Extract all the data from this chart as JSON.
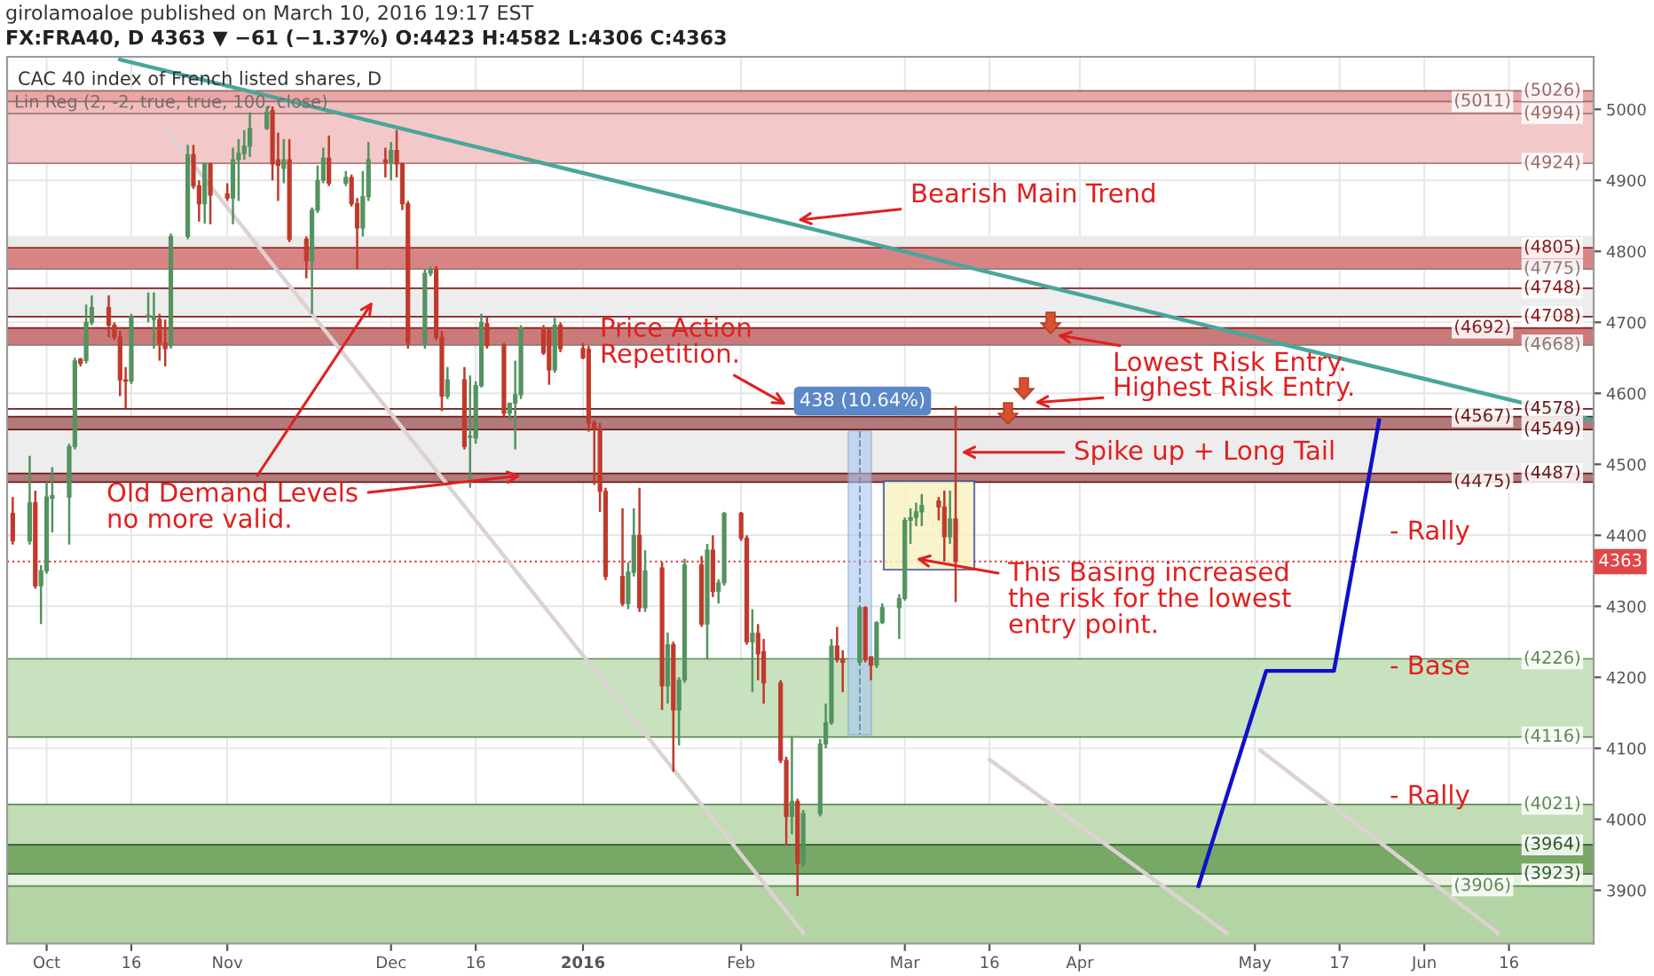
{
  "chart_data": {
    "type": "candlestick",
    "subtitle": "girolamoaloe published on March 10, 2016 19:17 EST",
    "title": "FX:FRA40, D 4363 ▼ −61 (−1.37%) O:4423 H:4582 L:4306 C:4363",
    "x": [
      "2015-09-25",
      "2015-09-28",
      "2015-09-29",
      "2015-09-30",
      "2015-10-01",
      "2015-10-02",
      "2015-10-05",
      "2015-10-06",
      "2015-10-07",
      "2015-10-08",
      "2015-10-09",
      "2015-10-12",
      "2015-10-13",
      "2015-10-14",
      "2015-10-15",
      "2015-10-16",
      "2015-10-19",
      "2015-10-20",
      "2015-10-21",
      "2015-10-22",
      "2015-10-23",
      "2015-10-26",
      "2015-10-27",
      "2015-10-28",
      "2015-10-29",
      "2015-10-30",
      "2015-11-02",
      "2015-11-03",
      "2015-11-04",
      "2015-11-05",
      "2015-11-06",
      "2015-11-09",
      "2015-11-10",
      "2015-11-11",
      "2015-11-12",
      "2015-11-13",
      "2015-11-16",
      "2015-11-17",
      "2015-11-18",
      "2015-11-19",
      "2015-11-20",
      "2015-11-23",
      "2015-11-24",
      "2015-11-25",
      "2015-11-26",
      "2015-11-27",
      "2015-11-30",
      "2015-12-01",
      "2015-12-02",
      "2015-12-03",
      "2015-12-04",
      "2015-12-07",
      "2015-12-08",
      "2015-12-09",
      "2015-12-10",
      "2015-12-11",
      "2015-12-14",
      "2015-12-15",
      "2015-12-16",
      "2015-12-17",
      "2015-12-18",
      "2015-12-21",
      "2015-12-22",
      "2015-12-23",
      "2015-12-24",
      "2015-12-28",
      "2015-12-29",
      "2015-12-30",
      "2015-12-31",
      "2016-01-04",
      "2016-01-05",
      "2016-01-06",
      "2016-01-07",
      "2016-01-08",
      "2016-01-11",
      "2016-01-12",
      "2016-01-13",
      "2016-01-14",
      "2016-01-15",
      "2016-01-18",
      "2016-01-19",
      "2016-01-20",
      "2016-01-21",
      "2016-01-22",
      "2016-01-25",
      "2016-01-26",
      "2016-01-27",
      "2016-01-28",
      "2016-01-29",
      "2016-02-01",
      "2016-02-02",
      "2016-02-03",
      "2016-02-04",
      "2016-02-05",
      "2016-02-08",
      "2016-02-09",
      "2016-02-10",
      "2016-02-11",
      "2016-02-12",
      "2016-02-15",
      "2016-02-16",
      "2016-02-17",
      "2016-02-18",
      "2016-02-19",
      "2016-02-22",
      "2016-02-23",
      "2016-02-24",
      "2016-02-25",
      "2016-02-26",
      "2016-02-29",
      "2016-03-01",
      "2016-03-02",
      "2016-03-03",
      "2016-03-04",
      "2016-03-07",
      "2016-03-08",
      "2016-03-09",
      "2016-03-10"
    ],
    "ohlc": [
      [
        4431,
        4454,
        4387,
        4392
      ],
      [
        4392,
        4512,
        4387,
        4446
      ],
      [
        4446,
        4463,
        4325,
        4329
      ],
      [
        4329,
        4358,
        4275,
        4350
      ],
      [
        4350,
        4475,
        4346,
        4454
      ],
      [
        4452,
        4496,
        4404,
        4456
      ],
      [
        4454,
        4529,
        4387,
        4525
      ],
      [
        4525,
        4650,
        4521,
        4646
      ],
      [
        4648,
        4650,
        4638,
        4642
      ],
      [
        4646,
        4725,
        4642,
        4700
      ],
      [
        4700,
        4738,
        4696,
        4721
      ],
      [
        4721,
        4738,
        4679,
        4696
      ],
      [
        4696,
        4700,
        4675,
        4679
      ],
      [
        4679,
        4688,
        4596,
        4619
      ],
      [
        4619,
        4637,
        4579,
        4617
      ],
      [
        4617,
        4712,
        4613,
        4708
      ],
      [
        4708,
        4742,
        4700,
        4710
      ],
      [
        4704,
        4742,
        4663,
        4708
      ],
      [
        4704,
        4712,
        4646,
        4671
      ],
      [
        4671,
        4704,
        4638,
        4663
      ],
      [
        4667,
        4825,
        4663,
        4821
      ],
      [
        4821,
        4950,
        4817,
        4936
      ],
      [
        4936,
        4950,
        4888,
        4892
      ],
      [
        4892,
        4900,
        4842,
        4867
      ],
      [
        4867,
        4925,
        4839,
        4923
      ],
      [
        4923,
        4925,
        4838,
        4879
      ],
      [
        4881,
        4896,
        4871,
        4875
      ],
      [
        4875,
        4946,
        4838,
        4929
      ],
      [
        4929,
        4958,
        4871,
        4938
      ],
      [
        4938,
        4971,
        4929,
        4948
      ],
      [
        4948,
        4996,
        4933,
        4973
      ],
      [
        4973,
        5004,
        4971,
        4996
      ],
      [
        4998,
        5004,
        4900,
        4923
      ],
      [
        4929,
        4967,
        4871,
        4921
      ],
      [
        4917,
        4958,
        4896,
        4929
      ],
      [
        4929,
        4958,
        4813,
        4817
      ],
      [
        4817,
        4821,
        4762,
        4787
      ],
      [
        4787,
        4862,
        4712,
        4858
      ],
      [
        4858,
        4921,
        4854,
        4900
      ],
      [
        4900,
        4946,
        4896,
        4931
      ],
      [
        4931,
        4963,
        4892,
        4896
      ],
      [
        4896,
        4913,
        4892,
        4904
      ],
      [
        4904,
        4908,
        4863,
        4867
      ],
      [
        4867,
        4875,
        4775,
        4833
      ],
      [
        4833,
        4913,
        4821,
        4877
      ],
      [
        4877,
        4954,
        4871,
        4929
      ],
      [
        4929,
        4946,
        4904,
        4925
      ],
      [
        4925,
        4954,
        4900,
        4942
      ],
      [
        4942,
        4971,
        4904,
        4923
      ],
      [
        4923,
        4925,
        4858,
        4867
      ],
      [
        4867,
        4871,
        4663,
        4671
      ],
      [
        4671,
        4775,
        4663,
        4769
      ],
      [
        4769,
        4779,
        4765,
        4775
      ],
      [
        4775,
        4779,
        4675,
        4679
      ],
      [
        4679,
        4688,
        4575,
        4596
      ],
      [
        4596,
        4637,
        4592,
        4619
      ],
      [
        4619,
        4637,
        4521,
        4525
      ],
      [
        4538,
        4625,
        4467,
        4540
      ],
      [
        4537,
        4617,
        4529,
        4611
      ],
      [
        4611,
        4712,
        4608,
        4700
      ],
      [
        4698,
        4708,
        4663,
        4667
      ],
      [
        4668,
        4671,
        4567,
        4572
      ],
      [
        4572,
        4587,
        4562,
        4586
      ],
      [
        4586,
        4646,
        4521,
        4598
      ],
      [
        4598,
        4696,
        4592,
        4692
      ],
      [
        4692,
        4696,
        4654,
        4657
      ],
      [
        4688,
        4692,
        4612,
        4633
      ],
      [
        4633,
        4708,
        4629,
        4696
      ],
      [
        4696,
        4700,
        4658,
        4663
      ],
      [
        4663,
        4671,
        4648,
        4650
      ],
      [
        4662,
        4667,
        4546,
        4558
      ],
      [
        4558,
        4562,
        4471,
        4550
      ],
      [
        4550,
        4558,
        4433,
        4462
      ],
      [
        4462,
        4467,
        4337,
        4342
      ],
      [
        4342,
        4438,
        4300,
        4304
      ],
      [
        4304,
        4362,
        4296,
        4348
      ],
      [
        4348,
        4438,
        4342,
        4400
      ],
      [
        4400,
        4467,
        4292,
        4298
      ],
      [
        4298,
        4379,
        4292,
        4350
      ],
      [
        4354,
        4362,
        4154,
        4188
      ],
      [
        4188,
        4263,
        4163,
        4246
      ],
      [
        4246,
        4250,
        4067,
        4154
      ],
      [
        4154,
        4200,
        4104,
        4196
      ],
      [
        4196,
        4367,
        4192,
        4358
      ],
      [
        4358,
        4371,
        4271,
        4275
      ],
      [
        4275,
        4388,
        4225,
        4379
      ],
      [
        4379,
        4400,
        4313,
        4321
      ],
      [
        4321,
        4338,
        4304,
        4333
      ],
      [
        4333,
        4433,
        4329,
        4431
      ],
      [
        4431,
        4433,
        4392,
        4396
      ],
      [
        4396,
        4400,
        4246,
        4250
      ],
      [
        4250,
        4296,
        4179,
        4262
      ],
      [
        4262,
        4275,
        4196,
        4233
      ],
      [
        4236,
        4254,
        4163,
        4192
      ],
      [
        4192,
        4196,
        4079,
        4083
      ],
      [
        4083,
        4088,
        3963,
        4004
      ],
      [
        4004,
        4117,
        3979,
        4025
      ],
      [
        4025,
        4029,
        3892,
        3938
      ],
      [
        3938,
        4013,
        3933,
        4008
      ],
      [
        4008,
        4113,
        4004,
        4106
      ],
      [
        4106,
        4163,
        4100,
        4136
      ],
      [
        4136,
        4254,
        4133,
        4244
      ],
      [
        4244,
        4271,
        4221,
        4225
      ],
      [
        4225,
        4238,
        4179,
        4221
      ],
      [
        4221,
        4300,
        4217,
        4298
      ],
      [
        4298,
        4300,
        4221,
        4225
      ],
      [
        4229,
        4229,
        4196,
        4217
      ],
      [
        4217,
        4279,
        4213,
        4277
      ],
      [
        4277,
        4304,
        4275,
        4298
      ],
      [
        4298,
        4317,
        4254,
        4311
      ],
      [
        4311,
        4425,
        4308,
        4421
      ],
      [
        4421,
        4438,
        4388,
        4425
      ],
      [
        4425,
        4446,
        4413,
        4433
      ],
      [
        4433,
        4458,
        4413,
        4442
      ],
      [
        4448,
        4454,
        4421,
        4440
      ],
      [
        4440,
        4463,
        4363,
        4398
      ],
      [
        4398,
        4463,
        4388,
        4423
      ],
      [
        4423,
        4582,
        4306,
        4363
      ]
    ],
    "colors": [
      "#c0392b",
      "#53935f",
      "#c0392b",
      "#53935f",
      "#53935f",
      "#53935f",
      "#53935f",
      "#53935f",
      "#c0392b",
      "#53935f",
      "#53935f",
      "#c0392b",
      "#c0392b",
      "#c0392b",
      "#c0392b",
      "#53935f",
      "#53935f",
      "#53935f",
      "#c0392b",
      "#c0392b",
      "#53935f",
      "#53935f",
      "#c0392b",
      "#c0392b",
      "#53935f",
      "#c0392b",
      "#c0392b",
      "#53935f",
      "#53935f",
      "#53935f",
      "#53935f",
      "#53935f",
      "#c0392b",
      "#c0392b",
      "#53935f",
      "#c0392b",
      "#c0392b",
      "#53935f",
      "#53935f",
      "#53935f",
      "#c0392b",
      "#53935f",
      "#c0392b",
      "#c0392b",
      "#53935f",
      "#53935f",
      "#c0392b",
      "#53935f",
      "#c0392b",
      "#c0392b",
      "#c0392b",
      "#53935f",
      "#53935f",
      "#c0392b",
      "#c0392b",
      "#53935f",
      "#c0392b",
      "#53935f",
      "#53935f",
      "#53935f",
      "#c0392b",
      "#c0392b",
      "#53935f",
      "#53935f",
      "#53935f",
      "#c0392b",
      "#c0392b",
      "#53935f",
      "#c0392b",
      "#c0392b",
      "#c0392b",
      "#c0392b",
      "#c0392b",
      "#c0392b",
      "#c0392b",
      "#53935f",
      "#53935f",
      "#c0392b",
      "#53935f",
      "#c0392b",
      "#53935f",
      "#c0392b",
      "#53935f",
      "#53935f",
      "#c0392b",
      "#53935f",
      "#c0392b",
      "#53935f",
      "#53935f",
      "#c0392b",
      "#c0392b",
      "#53935f",
      "#c0392b",
      "#c0392b",
      "#c0392b",
      "#c0392b",
      "#53935f",
      "#c0392b",
      "#53935f",
      "#53935f",
      "#53935f",
      "#53935f",
      "#c0392b",
      "#c0392b",
      "#53935f",
      "#c0392b",
      "#c0392b",
      "#53935f",
      "#53935f",
      "#53935f",
      "#53935f",
      "#53935f",
      "#53935f",
      "#53935f",
      "#c0392b",
      "#c0392b",
      "#53935f",
      "#c0392b"
    ],
    "series": [
      {
        "type": "line",
        "x": [
          "2015-10-14",
          "2016-07-01"
        ],
        "values": [
          5070,
          4562
        ],
        "color": "#4ba59b"
      },
      {
        "type": "line",
        "x": [
          "2016-04-22",
          "2016-05-04",
          "2016-05-16",
          "2016-05-24"
        ],
        "values": [
          3906,
          4209,
          4209,
          4562
        ],
        "color": "#1010c8"
      },
      {
        "type": "line",
        "x": [
          "2015-10-22",
          "2016-02-12"
        ],
        "values": [
          4972,
          3840
        ],
        "color": "#dcd2d2"
      },
      {
        "type": "line",
        "x": [
          "2016-03-16",
          "2016-04-27"
        ],
        "values": [
          4084,
          3840
        ],
        "color": "#dcd2d2"
      },
      {
        "type": "line",
        "x": [
          "2016-05-03",
          "2016-06-14"
        ],
        "values": [
          4097,
          3840
        ],
        "color": "#dcd2d2"
      }
    ],
    "xlim": [
      "2015-09-24",
      "2016-07-01"
    ],
    "xticks": [
      {
        "value": "2015-10-01",
        "label": "Oct"
      },
      {
        "value": "2015-10-16",
        "label": "16"
      },
      {
        "value": "2015-11-02",
        "label": "Nov"
      },
      {
        "value": "2015-12-01",
        "label": "Dec"
      },
      {
        "value": "2015-12-16",
        "label": "16"
      },
      {
        "value": "2016-01-04",
        "label": "2016"
      },
      {
        "value": "2016-02-01",
        "label": "Feb"
      },
      {
        "value": "2016-03-01",
        "label": "Mar"
      },
      {
        "value": "2016-03-16",
        "label": "16"
      },
      {
        "value": "2016-04-01",
        "label": "Apr"
      },
      {
        "value": "2016-05-02",
        "label": "May"
      },
      {
        "value": "2016-05-17",
        "label": "17"
      },
      {
        "value": "2016-06-01",
        "label": "Jun"
      },
      {
        "value": "2016-06-16",
        "label": "16"
      }
    ],
    "ylim": [
      3825,
      5074
    ],
    "yticks": [
      3900,
      4000,
      4100,
      4200,
      4300,
      4400,
      4500,
      4600,
      4700,
      4800,
      4900,
      5000
    ],
    "grid": true,
    "bands": [
      {
        "axis": "y",
        "from": 4994,
        "to": 5026,
        "color": "#f0bcbc"
      },
      {
        "axis": "y",
        "from": 5011,
        "to": 5026,
        "color": "#e8a6a6"
      },
      {
        "axis": "y",
        "from": 4924,
        "to": 4994,
        "color": "#f3c8c8"
      },
      {
        "axis": "y",
        "from": 4775,
        "to": 4822,
        "color": "#ebebeb"
      },
      {
        "axis": "y",
        "from": 4775,
        "to": 4805,
        "color": "#d98484"
      },
      {
        "axis": "y",
        "from": 4708,
        "to": 4748,
        "color": "#ededed"
      },
      {
        "axis": "y",
        "from": 4668,
        "to": 4692,
        "color": "#cb7a7a"
      },
      {
        "axis": "y",
        "from": 4487,
        "to": 4549,
        "color": "#ededed"
      },
      {
        "axis": "y",
        "from": 4549,
        "to": 4567,
        "color": "#b27a7a"
      },
      {
        "axis": "y",
        "from": 4475,
        "to": 4487,
        "color": "#b27a7a"
      },
      {
        "axis": "y",
        "from": 4116,
        "to": 4226,
        "color": "#c8e2bf"
      },
      {
        "axis": "y",
        "from": 3906,
        "to": 4021,
        "color": "#c2dcb5"
      },
      {
        "axis": "y",
        "from": 3923,
        "to": 3964,
        "color": "#78a865"
      },
      {
        "axis": "y",
        "from": 3906,
        "to": 3923,
        "color": "#e8f2e3"
      },
      {
        "axis": "y",
        "from": 3825,
        "to": 3906,
        "color": "#b5d4a5"
      }
    ],
    "ref_lines": [
      {
        "axis": "y",
        "value": 5026,
        "label": "(5026)",
        "color": "#9a6a6a"
      },
      {
        "axis": "y",
        "value": 5011,
        "label": "(5011)",
        "color": "#9a6a6a"
      },
      {
        "axis": "y",
        "value": 4994,
        "label": "(4994)",
        "color": "#9a6a6a"
      },
      {
        "axis": "y",
        "value": 4924,
        "label": "(4924)",
        "color": "#9a6a6a"
      },
      {
        "axis": "y",
        "value": 4805,
        "label": "(4805)",
        "color": "#8b1a1a"
      },
      {
        "axis": "y",
        "value": 4775,
        "label": "(4775)",
        "color": "#8a7a7a"
      },
      {
        "axis": "y",
        "value": 4748,
        "label": "(4748)",
        "color": "#8b1a1a"
      },
      {
        "axis": "y",
        "value": 4708,
        "label": "(4708)",
        "color": "#8b1a1a"
      },
      {
        "axis": "y",
        "value": 4692,
        "label": "(4692)",
        "color": "#8b1a1a"
      },
      {
        "axis": "y",
        "value": 4668,
        "label": "(4668)",
        "color": "#8a7a7a"
      },
      {
        "axis": "y",
        "value": 4578,
        "label": "(4578)",
        "color": "#6b1a1a"
      },
      {
        "axis": "y",
        "value": 4567,
        "label": "(4567)",
        "color": "#6b1a1a"
      },
      {
        "axis": "y",
        "value": 4549,
        "label": "(4549)",
        "color": "#6b1a1a"
      },
      {
        "axis": "y",
        "value": 4487,
        "label": "(4487)",
        "color": "#6b1a1a"
      },
      {
        "axis": "y",
        "value": 4475,
        "label": "(4475)",
        "color": "#6b1a1a"
      },
      {
        "axis": "y",
        "value": 4226,
        "label": "(4226)",
        "color": "#5e8a52"
      },
      {
        "axis": "y",
        "value": 4116,
        "label": "(4116)",
        "color": "#5e8a52"
      },
      {
        "axis": "y",
        "value": 4021,
        "label": "(4021)",
        "color": "#5e8a52"
      },
      {
        "axis": "y",
        "value": 3964,
        "label": "(3964)",
        "color": "#2e5a2e"
      },
      {
        "axis": "y",
        "value": 3923,
        "label": "(3923)",
        "color": "#2e5a2e"
      },
      {
        "axis": "y",
        "value": 3906,
        "label": "(3906)",
        "color": "#5e8a52"
      },
      {
        "axis": "y",
        "value": 4363,
        "label": "4363",
        "color": "#e04848",
        "line_style": "dotted"
      }
    ],
    "annotations": [
      {
        "text": "Bearish Main Trend",
        "x": "2016-02-11",
        "y": 4844
      },
      {
        "text": "Old Demand Levels\nno more valid.",
        "x": "2015-12-24",
        "y": 4484
      },
      {
        "text": "Price Action\nRepetition.",
        "x": "2016-02-09",
        "y": 4584
      },
      {
        "text": "438 (10.64%)",
        "x": "2016-02-22",
        "y": 4547
      },
      {
        "text": "Lowest Risk Entry.",
        "x": "2016-03-28",
        "y": 4682
      },
      {
        "text": "Highest Risk Entry.",
        "x": "2016-03-24",
        "y": 4587
      },
      {
        "text": "Spike up + Long Tail",
        "x": "2016-03-11",
        "y": 4517
      },
      {
        "text": "This Basing increased\nthe risk for the lowest\nentry point.",
        "x": "2016-03-03",
        "y": 4367
      },
      "- Rally",
      "- Base",
      "- Rally",
      "CAC 40 index of French listed shares, D",
      "Lin Reg (2, -2, true, true, 100, close)"
    ]
  }
}
